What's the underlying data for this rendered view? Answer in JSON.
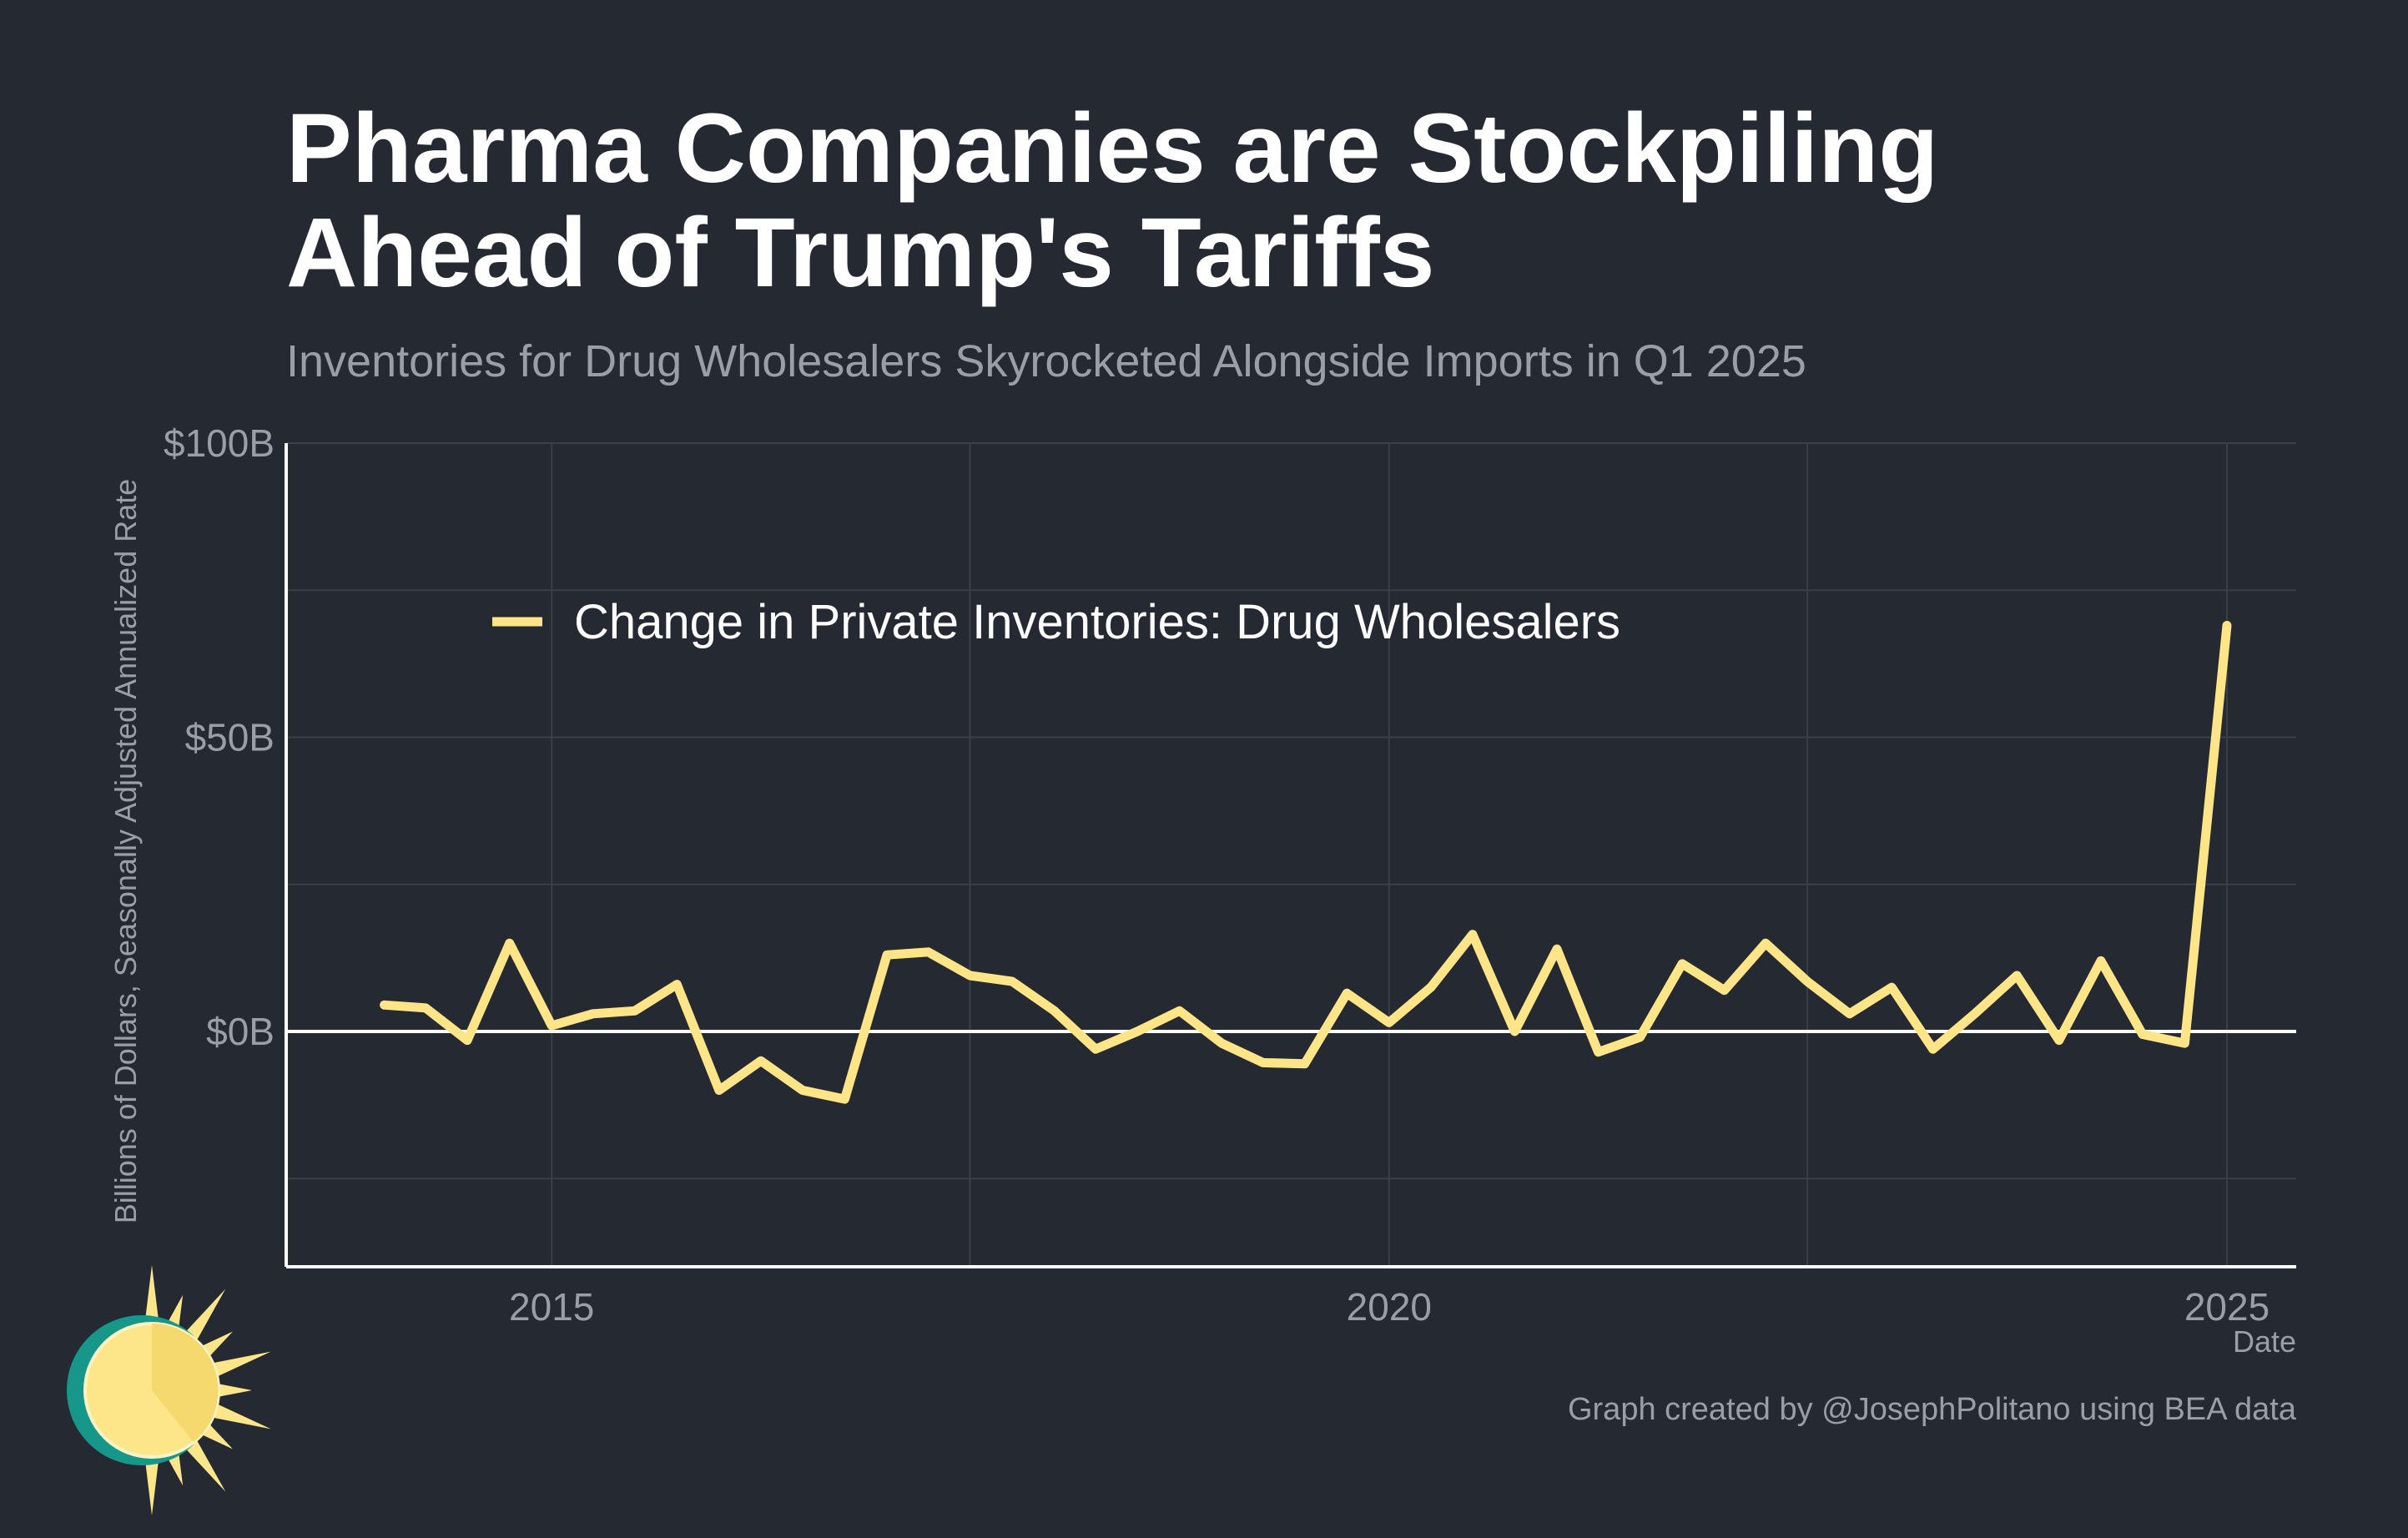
{
  "colors": {
    "background": "#252931",
    "line": "#ffe587",
    "grid": "#3b3f47",
    "axis": "#ffffff",
    "muted_text": "#9a9ea6"
  },
  "logo": {
    "icon": "sun-logo-icon"
  },
  "caption": "Graph created by @JosephPolitano using BEA data",
  "chart_data": {
    "type": "line",
    "title": "Pharma Companies are Stockpiling Ahead of Trump's Tariffs",
    "title_lines": [
      "Pharma Companies are Stockpiling",
      "Ahead of Trump's Tariffs"
    ],
    "subtitle": "Inventories for Drug Wholesalers Skyrocketed Alongside Imports in Q1 2025",
    "xlabel": "Date",
    "ylabel": "Billions of Dollars, Seasonally Adjusted Annualized Rate",
    "ylim": [
      -40,
      100
    ],
    "xlim": [
      "2013-06-01",
      "2025-06-01"
    ],
    "grid": true,
    "legend_position": "top-left",
    "y_ticks": [
      {
        "value": 100,
        "label": "$100B"
      },
      {
        "value": 50,
        "label": "$50B"
      },
      {
        "value": 0,
        "label": "$0B"
      }
    ],
    "x_ticks": [
      {
        "value": "2015-01-01",
        "label": "2015"
      },
      {
        "value": "2020-01-01",
        "label": "2020"
      },
      {
        "value": "2025-01-01",
        "label": "2025"
      }
    ],
    "series": [
      {
        "name": "Change in Private Inventories: Drug Wholesalers",
        "color": "#ffe587",
        "x": [
          "2014-01-01",
          "2014-04-01",
          "2014-07-01",
          "2014-10-01",
          "2015-01-01",
          "2015-04-01",
          "2015-07-01",
          "2015-10-01",
          "2016-01-01",
          "2016-04-01",
          "2016-07-01",
          "2016-10-01",
          "2017-01-01",
          "2017-04-01",
          "2017-07-01",
          "2017-10-01",
          "2018-01-01",
          "2018-04-01",
          "2018-07-01",
          "2018-10-01",
          "2019-01-01",
          "2019-04-01",
          "2019-07-01",
          "2019-10-01",
          "2020-01-01",
          "2020-04-01",
          "2020-07-01",
          "2020-10-01",
          "2021-01-01",
          "2021-04-01",
          "2021-07-01",
          "2021-10-01",
          "2022-01-01",
          "2022-04-01",
          "2022-07-01",
          "2022-10-01",
          "2023-01-01",
          "2023-04-01",
          "2023-07-01",
          "2023-10-01",
          "2024-01-01",
          "2024-04-01",
          "2024-07-01",
          "2024-10-01",
          "2025-01-01"
        ],
        "values": [
          4.5,
          4.0,
          -1.5,
          15.0,
          1.0,
          3.0,
          3.5,
          8.0,
          -10.0,
          -5.0,
          -10.0,
          -11.5,
          13.0,
          13.5,
          9.5,
          8.5,
          3.5,
          -3.0,
          0.0,
          3.5,
          -2.0,
          -5.3,
          -5.5,
          6.5,
          1.5,
          7.5,
          16.5,
          0.0,
          14.0,
          -3.5,
          -1.0,
          11.5,
          7.0,
          15.0,
          8.5,
          3.0,
          7.5,
          -3.0,
          3.0,
          9.5,
          -1.5,
          12.0,
          -0.5,
          -2.0,
          69.0
        ]
      }
    ]
  }
}
